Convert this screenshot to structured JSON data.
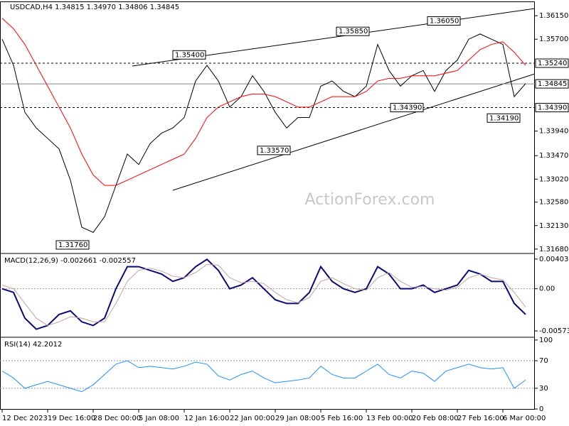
{
  "chart_data": [
    {
      "type": "line",
      "title": "USDCAD,H4  1.34815 1.34970 1.34806 1.34845",
      "watermark": "ActionForex.com",
      "ylim": [
        1.3161,
        1.3641
      ],
      "yticks": [
        {
          "value": 1.3615,
          "label": "1.36150"
        },
        {
          "value": 1.357,
          "label": "1.35700"
        },
        {
          "value": 1.3394,
          "label": "1.33940"
        },
        {
          "value": 1.3347,
          "label": "1.33470"
        },
        {
          "value": 1.3302,
          "label": "1.33020"
        },
        {
          "value": 1.3258,
          "label": "1.32580"
        },
        {
          "value": 1.3213,
          "label": "1.32130"
        },
        {
          "value": 1.3168,
          "label": "1.31680"
        }
      ],
      "levels": [
        {
          "value": 1.3524,
          "label": "1.35240"
        },
        {
          "value": 1.3439,
          "label": "1.34390"
        }
      ],
      "current": {
        "value": 1.34845,
        "label": "1.34845"
      },
      "annotations": [
        {
          "value": 1.3176,
          "label": "1.31760"
        },
        {
          "value": 1.354,
          "label": "1.35400"
        },
        {
          "value": 1.3357,
          "label": "1.33570"
        },
        {
          "value": 1.3585,
          "label": "1.35850"
        },
        {
          "value": 1.3605,
          "label": "1.36050"
        },
        {
          "value": 1.3439,
          "label": "1.34390"
        },
        {
          "value": 1.3419,
          "label": "1.34190"
        }
      ],
      "series": [
        {
          "color": "#000000",
          "values": [
            1.357,
            1.352,
            1.343,
            1.34,
            1.338,
            1.336,
            1.33,
            1.321,
            1.32,
            1.323,
            1.329,
            1.335,
            1.333,
            1.337,
            1.339,
            1.34,
            1.342,
            1.349,
            1.352,
            1.349,
            1.344,
            1.346,
            1.35,
            1.347,
            1.343,
            1.34,
            1.342,
            1.342,
            1.348,
            1.349,
            1.347,
            1.346,
            1.348,
            1.356,
            1.351,
            1.348,
            1.35,
            1.351,
            1.347,
            1.351,
            1.353,
            1.357,
            1.358,
            1.357,
            1.356,
            1.346,
            1.3485
          ]
        },
        {
          "color": "#ff0000",
          "values": [
            1.361,
            1.359,
            1.356,
            1.352,
            1.348,
            1.344,
            1.34,
            1.335,
            1.331,
            1.329,
            1.329,
            1.33,
            1.331,
            1.332,
            1.333,
            1.334,
            1.335,
            1.338,
            1.342,
            1.344,
            1.345,
            1.346,
            1.3465,
            1.3465,
            1.346,
            1.345,
            1.344,
            1.344,
            1.345,
            1.346,
            1.346,
            1.346,
            1.347,
            1.349,
            1.3495,
            1.3495,
            1.35,
            1.35,
            1.35,
            1.3505,
            1.351,
            1.353,
            1.355,
            1.356,
            1.3565,
            1.3545,
            1.352
          ]
        }
      ]
    },
    {
      "type": "line",
      "title": "MACD(12,26,9) -0.002661 -0.002557",
      "ylim": [
        -0.0065,
        0.0047
      ],
      "yticks": [
        0.004038,
        {
          "value": 0,
          "label": "0.00"
        },
        -0.005737
      ],
      "series": [
        {
          "color": "#0a0a78",
          "values": [
            0,
            -0.0005,
            -0.004,
            -0.0055,
            -0.005,
            -0.0035,
            -0.003,
            -0.0045,
            -0.005,
            -0.004,
            0,
            0.003,
            0.003,
            0.0025,
            0.002,
            0.001,
            0.0015,
            0.003,
            0.004,
            0.0025,
            0,
            0.0005,
            0.0015,
            0,
            -0.0015,
            -0.002,
            -0.002,
            -0.0005,
            0.003,
            0.001,
            0,
            -0.0005,
            0,
            0.003,
            0.002,
            0,
            0,
            0.0005,
            -0.0005,
            0,
            0.0005,
            0.0025,
            0.002,
            0.001,
            0.001,
            -0.002,
            -0.0035
          ]
        },
        {
          "color": "#c8a0a0",
          "values": [
            0.0005,
            0,
            -0.002,
            -0.004,
            -0.005,
            -0.0045,
            -0.0038,
            -0.004,
            -0.0045,
            -0.0045,
            -0.002,
            0.001,
            0.0025,
            0.0028,
            0.0024,
            0.0017,
            0.0015,
            0.0022,
            0.0033,
            0.0032,
            0.0015,
            0.0008,
            0.001,
            0.0007,
            -0.0005,
            -0.0015,
            -0.0019,
            -0.0012,
            0.001,
            0.0015,
            0.0007,
            0,
            -0.0002,
            0.0015,
            0.0022,
            0.001,
            0.0002,
            0.0003,
            0,
            -0.0002,
            0.0002,
            0.0015,
            0.002,
            0.0015,
            0.0012,
            -0.0005,
            -0.0025
          ]
        }
      ]
    },
    {
      "type": "line",
      "title": "RSI(14) 42.2012",
      "ylim": [
        -1,
        103
      ],
      "yticks": [
        100,
        70,
        30,
        0
      ],
      "categories": [
        "12 Dec 2023",
        null,
        null,
        null,
        "19 Dec 16:00",
        null,
        null,
        null,
        "28 Dec 00:00",
        null,
        null,
        null,
        "5 Jan 08:00",
        null,
        null,
        null,
        "12 Jan 16:00",
        null,
        null,
        null,
        "22 Jan 00:00",
        null,
        null,
        null,
        "29 Jan 08:00",
        null,
        null,
        null,
        "5 Feb 16:00",
        null,
        null,
        null,
        "13 Feb 00:00",
        null,
        null,
        null,
        "20 Feb 08:00",
        null,
        null,
        null,
        "27 Feb 16:00",
        null,
        null,
        null,
        "6 Mar 00:00",
        null,
        null
      ],
      "series": [
        {
          "color": "#1e90ff",
          "values": [
            55,
            45,
            30,
            35,
            40,
            35,
            30,
            25,
            35,
            50,
            65,
            70,
            60,
            62,
            60,
            58,
            62,
            68,
            65,
            48,
            42,
            50,
            55,
            45,
            38,
            40,
            42,
            45,
            62,
            50,
            45,
            45,
            55,
            65,
            50,
            45,
            55,
            52,
            40,
            55,
            60,
            65,
            60,
            58,
            60,
            30,
            42
          ]
        }
      ]
    }
  ]
}
